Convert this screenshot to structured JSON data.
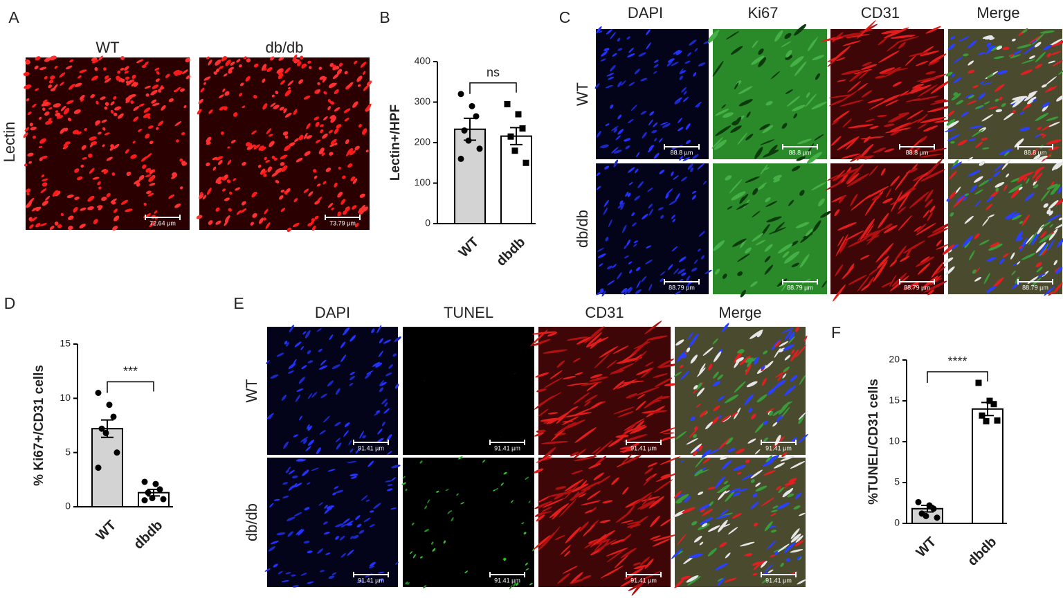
{
  "panel_labels": [
    "A",
    "B",
    "C",
    "D",
    "E",
    "F"
  ],
  "panel_a": {
    "columns": [
      "WT",
      "db/db"
    ],
    "row_label": "Lectin",
    "scale_bars": [
      "72.64 µm",
      "73.79 µm"
    ]
  },
  "panel_c": {
    "columns": [
      "DAPI",
      "Ki67",
      "CD31",
      "Merge"
    ],
    "rows": [
      "WT",
      "db/db"
    ],
    "scale_bars": [
      [
        "88.8 µm",
        "88.8 µm",
        "88.8 µm",
        "88.8 µm"
      ],
      [
        "88.79 µm",
        "88.79 µm",
        "88.79 µm",
        "88.79 µm"
      ]
    ]
  },
  "panel_e": {
    "columns": [
      "DAPI",
      "TUNEL",
      "CD31",
      "Merge"
    ],
    "rows": [
      "WT",
      "db/db"
    ],
    "scale_bars": [
      [
        "91.41 µm",
        "91.41 µm",
        "91.41 µm",
        "91.41 µm"
      ],
      [
        "91.41 µm",
        "91.41 µm",
        "91.41 µm",
        "91.41 µm"
      ]
    ]
  },
  "chart_data": [
    {
      "type": "bar",
      "ylabel": "Lectin+/HPF",
      "categories": [
        "WT",
        "dbdb"
      ],
      "values": [
        233,
        216
      ],
      "errors": [
        27,
        21
      ],
      "colors": [
        "#d3d3d3",
        "#ffffff"
      ],
      "markers": [
        "circle",
        "square"
      ],
      "points": [
        [
          320,
          290,
          265,
          230,
          205,
          185,
          160
        ],
        [
          295,
          270,
          235,
          215,
          180,
          150
        ]
      ],
      "ylim": [
        0,
        400
      ],
      "yticks": [
        0,
        100,
        200,
        300,
        400
      ],
      "annotation": "ns"
    },
    {
      "type": "bar",
      "ylabel": "% Ki67+/CD31 cells",
      "categories": [
        "WT",
        "dbdb"
      ],
      "values": [
        7.2,
        1.3
      ],
      "errors": [
        0.8,
        0.3
      ],
      "colors": [
        "#d3d3d3",
        "#ffffff"
      ],
      "markers": [
        "circle",
        "circle"
      ],
      "points": [
        [
          10.5,
          9.4,
          8.3,
          7.2,
          6.8,
          5.0,
          3.6
        ],
        [
          2.3,
          2.1,
          1.6,
          1.3,
          0.8,
          0.7,
          0.6
        ]
      ],
      "ylim": [
        0,
        15
      ],
      "yticks": [
        0,
        5,
        10,
        15
      ],
      "annotation": "***"
    },
    {
      "type": "bar",
      "ylabel": "%TUNEL/CD31 cells",
      "categories": [
        "WT",
        "dbdb"
      ],
      "values": [
        1.8,
        14.0
      ],
      "errors": [
        0.4,
        0.8
      ],
      "colors": [
        "#d3d3d3",
        "#ffffff"
      ],
      "markers": [
        "circle",
        "square"
      ],
      "points": [
        [
          2.6,
          2.2,
          1.8,
          1.2,
          0.9,
          0.7
        ],
        [
          17.2,
          15.0,
          14.6,
          13.2,
          12.5,
          12.6
        ]
      ],
      "ylim": [
        0,
        20
      ],
      "yticks": [
        0,
        5,
        10,
        15,
        20
      ],
      "annotation": "****"
    }
  ]
}
